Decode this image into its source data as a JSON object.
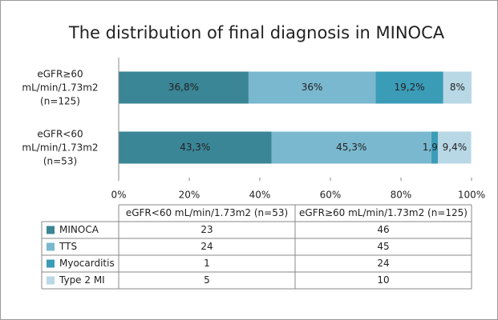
{
  "chart_data": {
    "type": "stacked-bar-horizontal",
    "title": "The distribution of final diagnosis in MINOCA",
    "categories": [
      "eGFR≥60 mL/min/1.73m2 (n=125)",
      "eGFR<60 mL/min/1.73m2 (n=53)"
    ],
    "series": [
      {
        "name": "MINOCA",
        "color": "#3a8596",
        "values": [
          36.8,
          43.3
        ],
        "value_labels": [
          "36,8%",
          "43,3%"
        ]
      },
      {
        "name": "TTS",
        "color": "#7ab8cf",
        "values": [
          36,
          45.3
        ],
        "value_labels": [
          "36%",
          "45,3%"
        ]
      },
      {
        "name": "Myocarditis",
        "color": "#3b9cb8",
        "values": [
          19.2,
          1.9
        ],
        "value_labels": [
          "19,2%",
          "1,9%"
        ]
      },
      {
        "name": "Type 2 MI",
        "color": "#b9d8e6",
        "values": [
          8,
          9.4
        ],
        "value_labels": [
          "8%",
          "9,4%"
        ]
      }
    ],
    "xlim": [
      0,
      100
    ],
    "xticks": [
      {
        "value": 0,
        "label": "0%"
      },
      {
        "value": 20,
        "label": "20%"
      },
      {
        "value": 40,
        "label": "40%"
      },
      {
        "value": 60,
        "label": "60%"
      },
      {
        "value": 80,
        "label": "80%"
      },
      {
        "value": 100,
        "label": "100%"
      }
    ],
    "grid": false,
    "table": {
      "columns": [
        "eGFR<60 mL/min/1.73m2 (n=53)",
        "eGFR≥60  mL/min/1.73m2 (n=125)"
      ],
      "rows": [
        [
          23,
          46
        ],
        [
          24,
          45
        ],
        [
          1,
          24
        ],
        [
          5,
          10
        ]
      ]
    }
  }
}
